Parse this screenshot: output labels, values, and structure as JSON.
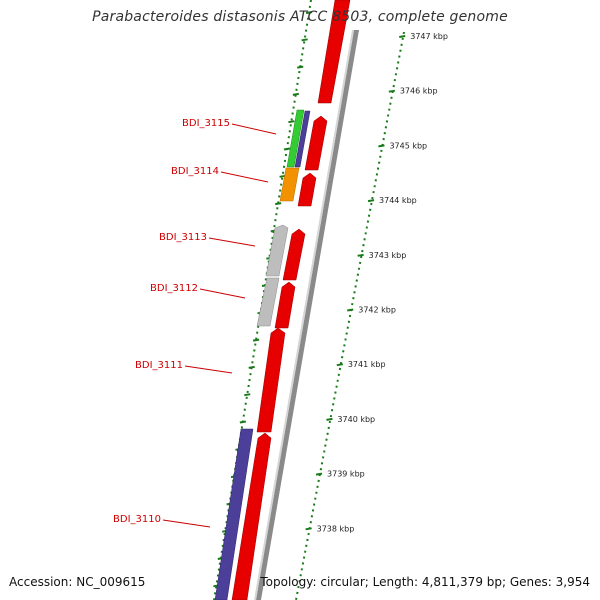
{
  "title": "Parabacteroides distasonis ATCC 8503, complete genome",
  "accession_text": "Accession: NC_009615",
  "summary_text": "Topology: circular; Length: 4,811,379 bp; Genes: 3,954",
  "colors": {
    "forward_cds": "#e60000",
    "reverse_cog_purple": "#4b3f99",
    "cog_green": "#33cc33",
    "cog_orange": "#f39200",
    "cog_grey": "#b8b8b8",
    "backbone": "#8a8a8a",
    "ruler_green": "#1a7a1a",
    "gene_label": "#cc0000"
  },
  "ruler": {
    "ticks": [
      {
        "pos_kbp": 3747,
        "label": "3747 kbp"
      },
      {
        "pos_kbp": 3746,
        "label": "3746 kbp"
      },
      {
        "pos_kbp": 3745,
        "label": "3745 kbp"
      },
      {
        "pos_kbp": 3744,
        "label": "3744 kbp"
      },
      {
        "pos_kbp": 3743,
        "label": "3743 kbp"
      },
      {
        "pos_kbp": 3742,
        "label": "3742 kbp"
      },
      {
        "pos_kbp": 3741,
        "label": "3741 kbp"
      },
      {
        "pos_kbp": 3740,
        "label": "3740 kbp"
      },
      {
        "pos_kbp": 3739,
        "label": "3739 kbp"
      },
      {
        "pos_kbp": 3738,
        "label": "3738 kbp"
      }
    ]
  },
  "gene_labels": [
    {
      "name": "BDI_3115"
    },
    {
      "name": "BDI_3114"
    },
    {
      "name": "BDI_3113"
    },
    {
      "name": "BDI_3112"
    },
    {
      "name": "BDI_3111"
    },
    {
      "name": "BDI_3110"
    }
  ]
}
